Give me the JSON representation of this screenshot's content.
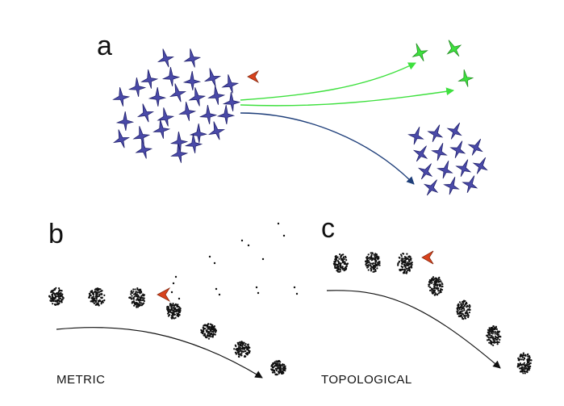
{
  "panels": {
    "a": {
      "label": "a"
    },
    "b": {
      "label": "b",
      "caption": "METRIC"
    },
    "c": {
      "label": "c",
      "caption": "TOPOLOGICAL"
    }
  },
  "colors": {
    "flock": "#4a4aa8",
    "flock_stroke": "#1e1e6a",
    "escapee": "#3ee03e",
    "escapee_stroke": "#1d8a1d",
    "predator": "#d9421c",
    "green_path": "#3ee03e",
    "blue_path": "#1f3f7a",
    "dots": "#111111"
  },
  "icons": {
    "bird": "bird-icon",
    "predator": "predator-chevron-icon",
    "flock_blob": "flock-blob-icon"
  }
}
